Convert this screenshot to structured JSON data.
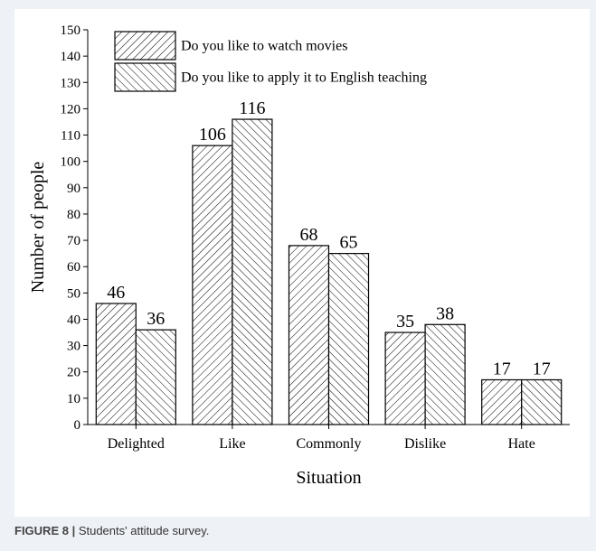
{
  "figure": {
    "caption_label": "FIGURE 8 |",
    "caption_text": " Students' attitude survey."
  },
  "chart_data": {
    "type": "bar",
    "categories": [
      "Delighted",
      "Like",
      "Commonly",
      "Dislike",
      "Hate"
    ],
    "series": [
      {
        "name": "Do you like to watch movies",
        "values": [
          46,
          106,
          68,
          35,
          17
        ],
        "hatch": "forward-diagonal"
      },
      {
        "name": "Do you like to apply it to English teaching",
        "values": [
          36,
          116,
          65,
          38,
          17
        ],
        "hatch": "backward-diagonal"
      }
    ],
    "xlabel": "Situation",
    "ylabel": "Number of people",
    "ylim": [
      0,
      150
    ],
    "yticks": [
      0,
      10,
      20,
      30,
      40,
      50,
      60,
      70,
      80,
      90,
      100,
      110,
      120,
      130,
      140,
      150
    ],
    "legend_position": "top-left",
    "grid": false,
    "colors": {
      "ink": "#000000",
      "background": "#ffffff"
    }
  }
}
